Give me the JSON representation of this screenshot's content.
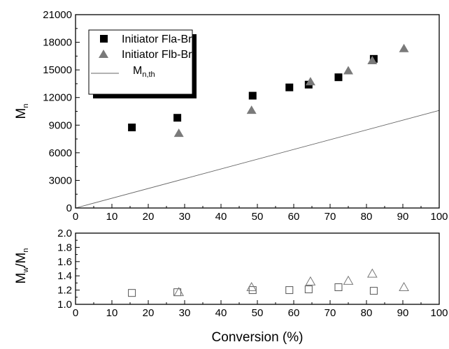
{
  "chart_data": [
    {
      "type": "scatter",
      "xlim": [
        0,
        100
      ],
      "ylim": [
        0,
        21000
      ],
      "x_ticks": [
        0,
        10,
        20,
        30,
        40,
        50,
        60,
        70,
        80,
        90,
        100
      ],
      "x_tick_labels": [
        "0",
        "10",
        "20",
        "30",
        "40",
        "50",
        "60",
        "70",
        "80",
        "90",
        "100"
      ],
      "y_ticks": [
        0,
        3000,
        6000,
        9000,
        12000,
        15000,
        18000,
        21000
      ],
      "y_tick_labels": [
        "0",
        "3000",
        "6000",
        "9000",
        "12000",
        "15000",
        "18000",
        "21000"
      ],
      "ylabel_main": "M",
      "ylabel_sub": "n",
      "legend_position": "top-left",
      "series": [
        {
          "name": "Initiator Fla-Br",
          "marker": "filled-square",
          "color": "#000000",
          "x": [
            15.5,
            28.0,
            48.7,
            58.8,
            64.1,
            72.3,
            82.0
          ],
          "y": [
            8750,
            9800,
            12200,
            13100,
            13400,
            14200,
            16200
          ]
        },
        {
          "name": "Initiator Flb-Br",
          "marker": "filled-triangle",
          "color": "#7a7a7a",
          "x": [
            28.4,
            48.4,
            64.6,
            75.0,
            81.6,
            90.3
          ],
          "y": [
            8100,
            10600,
            13700,
            14900,
            16000,
            17300
          ]
        },
        {
          "name": "M",
          "name_sub": "n,th",
          "marker": "line",
          "color": "#666666",
          "x": [
            0,
            100
          ],
          "y": [
            0,
            10600
          ]
        }
      ]
    },
    {
      "type": "scatter",
      "xlim": [
        0,
        100
      ],
      "ylim": [
        1.0,
        2.0
      ],
      "x_ticks": [
        0,
        10,
        20,
        30,
        40,
        50,
        60,
        70,
        80,
        90,
        100
      ],
      "x_tick_labels": [
        "0",
        "10",
        "20",
        "30",
        "40",
        "50",
        "60",
        "70",
        "80",
        "90",
        "100"
      ],
      "y_ticks": [
        1.0,
        1.2,
        1.4,
        1.6,
        1.8,
        2.0
      ],
      "y_tick_labels": [
        "1.0",
        "1.2",
        "1.4",
        "1.6",
        "1.8",
        "2.0"
      ],
      "ylabel_parts": [
        "M",
        "w",
        "/M",
        "n"
      ],
      "xlabel": "Conversion (%)",
      "series": [
        {
          "marker": "open-square",
          "color": "#555555",
          "x": [
            15.5,
            28.0,
            48.7,
            58.8,
            64.1,
            72.3,
            82.0
          ],
          "y": [
            1.16,
            1.17,
            1.2,
            1.2,
            1.21,
            1.24,
            1.19
          ]
        },
        {
          "marker": "open-triangle",
          "color": "#777777",
          "x": [
            28.4,
            48.4,
            64.6,
            75.0,
            81.6,
            90.3
          ],
          "y": [
            1.17,
            1.24,
            1.32,
            1.33,
            1.43,
            1.24
          ]
        }
      ]
    }
  ]
}
